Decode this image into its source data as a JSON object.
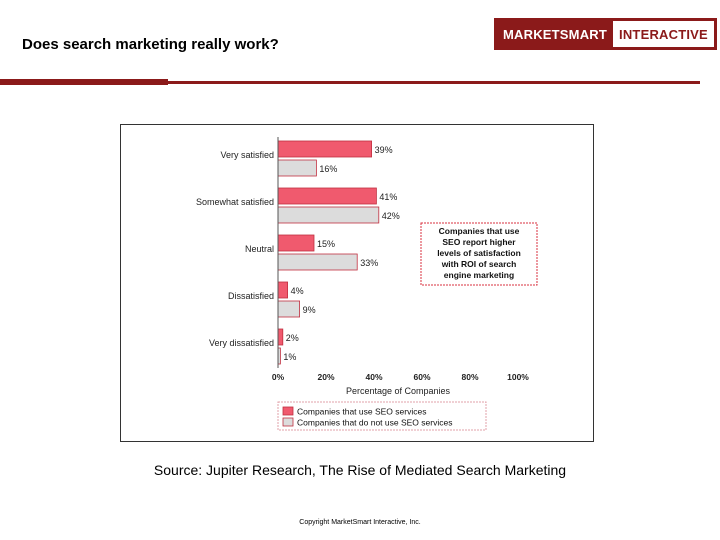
{
  "slide": {
    "title": "Does search marketing really work?",
    "logo_left": "MARKETSMART",
    "logo_right": "INTERACTIVE",
    "source": "Source: Jupiter Research, The Rise of Mediated Search Marketing",
    "copyright": "Copyright MarketSmart Interactive, Inc."
  },
  "colors": {
    "brand": "#8b1a1a",
    "seo": "#f05a6e",
    "no_seo": "#dcdcdc",
    "bar_border": "#c03040",
    "callout_border": "#d9303f"
  },
  "chart_data": {
    "type": "bar",
    "orientation": "horizontal",
    "categories": [
      "Very satisfied",
      "Somewhat satisfied",
      "Neutral",
      "Dissatisfied",
      "Very dissatisfied"
    ],
    "series": [
      {
        "name": "Companies that use SEO services",
        "values": [
          39,
          41,
          15,
          4,
          2
        ]
      },
      {
        "name": "Companies that do not use SEO services",
        "values": [
          16,
          42,
          33,
          9,
          1
        ]
      }
    ],
    "xlabel": "Percentage of Companies",
    "xlim": [
      0,
      100
    ],
    "xticks": [
      "0%",
      "20%",
      "40%",
      "60%",
      "80%",
      "100%"
    ],
    "xtick_values": [
      0,
      20,
      40,
      60,
      80,
      100
    ],
    "value_suffix": "%",
    "legend_position": "bottom",
    "annotation": "Companies that use SEO report higher levels of satisfaction with ROI of search engine marketing",
    "annotation_lines": [
      "Companies that use",
      "SEO report higher",
      "levels of satisfaction",
      "with ROI of search",
      "engine marketing"
    ]
  }
}
